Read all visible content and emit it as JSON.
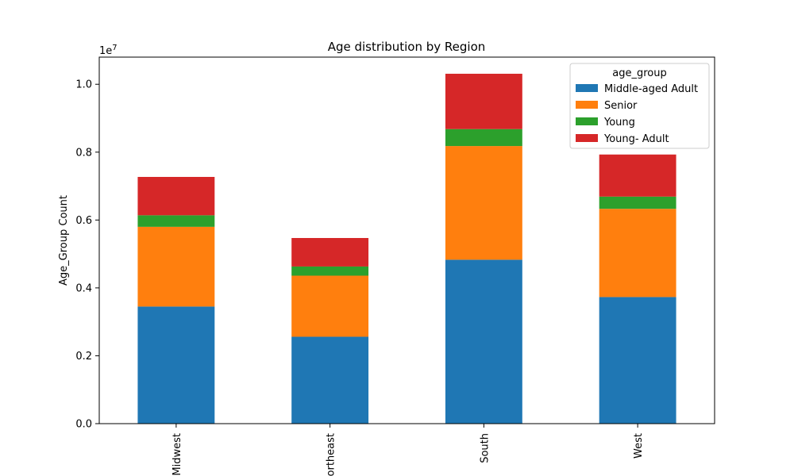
{
  "chart_data": {
    "type": "bar",
    "stacked": true,
    "title": "Age distribution by Region",
    "xlabel": "",
    "ylabel": "Age_Group Count",
    "y_offset_label": "1e7",
    "categories": [
      "Midwest",
      "Northeast",
      "South",
      "West"
    ],
    "series": [
      {
        "name": "Middle-aged Adult",
        "color": "#1f77b4",
        "values": [
          3450000,
          2560000,
          4830000,
          3730000
        ]
      },
      {
        "name": "Senior",
        "color": "#ff7f0e",
        "values": [
          2350000,
          1800000,
          3350000,
          2600000
        ]
      },
      {
        "name": "Young",
        "color": "#2ca02c",
        "values": [
          340000,
          270000,
          500000,
          360000
        ]
      },
      {
        "name": "Young- Adult",
        "color": "#d62728",
        "values": [
          1130000,
          840000,
          1630000,
          1240000
        ]
      }
    ],
    "ylim": [
      0,
      10800000
    ],
    "yticks": [
      0,
      2000000,
      4000000,
      6000000,
      8000000,
      10000000
    ],
    "ytick_labels": [
      "0.0",
      "0.2",
      "0.4",
      "0.6",
      "0.8",
      "1.0"
    ],
    "legend": {
      "title": "age_group",
      "placement": "top-right"
    },
    "grid": false
  }
}
